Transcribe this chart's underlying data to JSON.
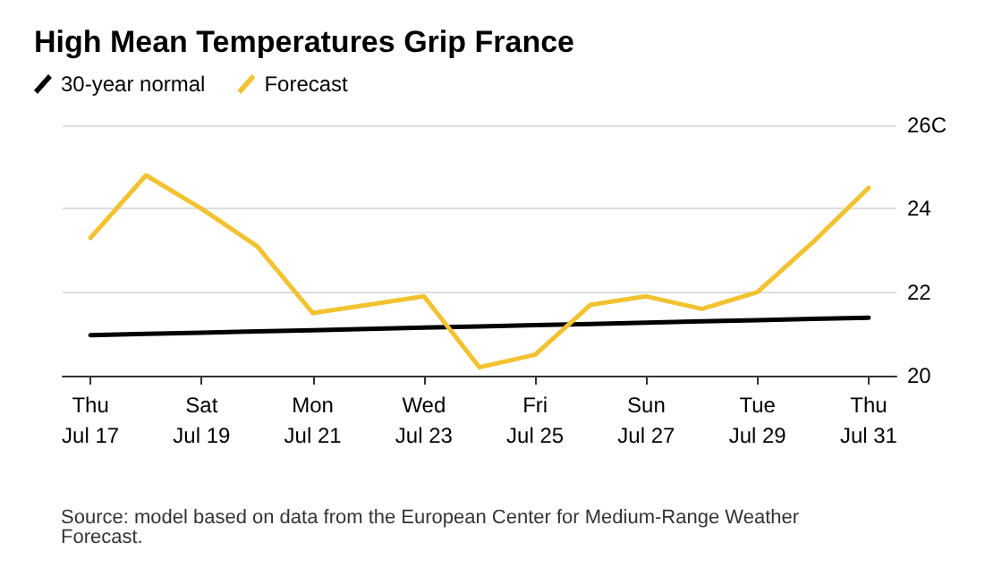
{
  "chart_data": {
    "type": "line",
    "title": "High Mean Temperatures Grip France",
    "categories": [
      "Thu\nJul 17",
      null,
      "Sat\nJul 19",
      null,
      "Mon\nJul 21",
      null,
      "Wed\nJul 23",
      null,
      "Fri\nJul 25",
      null,
      "Sun\nJul 27",
      null,
      "Tue\nJul 29",
      null,
      "Thu\nJul 31"
    ],
    "series": [
      {
        "name": "30-year normal",
        "color": "#000000",
        "values": [
          20.97,
          21.0,
          21.03,
          21.06,
          21.09,
          21.12,
          21.15,
          21.18,
          21.21,
          21.24,
          21.27,
          21.3,
          21.33,
          21.36,
          21.39
        ]
      },
      {
        "name": "Forecast",
        "color": "#f2c230",
        "values": [
          23.3,
          24.8,
          24.0,
          23.1,
          21.5,
          21.7,
          21.9,
          20.2,
          20.5,
          21.7,
          21.9,
          21.6,
          22.0,
          23.2,
          24.5
        ]
      }
    ],
    "ylim": [
      20,
      26
    ],
    "yticks": [
      20,
      22,
      24,
      {
        "value": 26,
        "label": "26C"
      }
    ],
    "grid": "y",
    "legend": "top left",
    "marker": "none",
    "line_style": "solid",
    "annotations": [
      "Source: model based on data from the European Center for Medium-Range Weather Forecast."
    ]
  }
}
